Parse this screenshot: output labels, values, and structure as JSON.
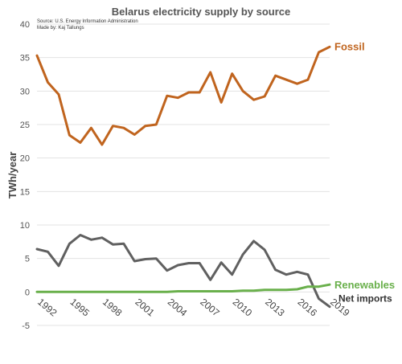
{
  "chart_data": {
    "type": "line",
    "title": "Belarus electricity supply by source",
    "source_note": "Source: U.S. Energy Information Administration",
    "author_note": "Made by: Kaj Tallungs",
    "xlabel": "",
    "ylabel": "TWh/year",
    "xlim": [
      1992,
      2019
    ],
    "ylim": [
      -5,
      40
    ],
    "y_ticks": [
      -5,
      0,
      5,
      10,
      15,
      20,
      25,
      30,
      35,
      40
    ],
    "x_ticks": [
      1992,
      1995,
      1998,
      2001,
      2004,
      2007,
      2010,
      2013,
      2016,
      2019
    ],
    "grid": true,
    "legend_placement": "right, inline series labels",
    "x": [
      1992,
      1993,
      1994,
      1995,
      1996,
      1997,
      1998,
      1999,
      2000,
      2001,
      2002,
      2003,
      2004,
      2005,
      2006,
      2007,
      2008,
      2009,
      2010,
      2011,
      2012,
      2013,
      2014,
      2015,
      2016,
      2017,
      2018,
      2019
    ],
    "series": [
      {
        "name": "Fossil",
        "color": "#c0641e",
        "values": [
          35.3,
          31.3,
          29.5,
          23.4,
          22.3,
          24.5,
          22.0,
          24.8,
          24.5,
          23.5,
          24.8,
          25.0,
          29.3,
          29.0,
          29.8,
          29.8,
          32.8,
          28.3,
          32.6,
          30.0,
          28.7,
          29.2,
          32.3,
          31.7,
          31.1,
          31.7,
          35.8,
          36.6
        ]
      },
      {
        "name": "Net imports",
        "color": "#606060",
        "values": [
          6.4,
          6.0,
          3.9,
          7.2,
          8.5,
          7.8,
          8.1,
          7.1,
          7.2,
          4.6,
          4.9,
          5.0,
          3.2,
          4.0,
          4.3,
          4.3,
          1.8,
          4.4,
          2.6,
          5.6,
          7.6,
          6.3,
          3.3,
          2.6,
          3.0,
          2.6,
          -1.0,
          -2.2
        ]
      },
      {
        "name": "Renewables",
        "color": "#6ab04c",
        "values": [
          0.0,
          0.0,
          0.0,
          0.0,
          0.0,
          0.0,
          0.0,
          0.0,
          0.0,
          0.0,
          0.0,
          0.0,
          0.0,
          0.1,
          0.1,
          0.1,
          0.1,
          0.1,
          0.1,
          0.2,
          0.2,
          0.3,
          0.3,
          0.3,
          0.4,
          0.8,
          0.8,
          1.1
        ]
      }
    ]
  }
}
